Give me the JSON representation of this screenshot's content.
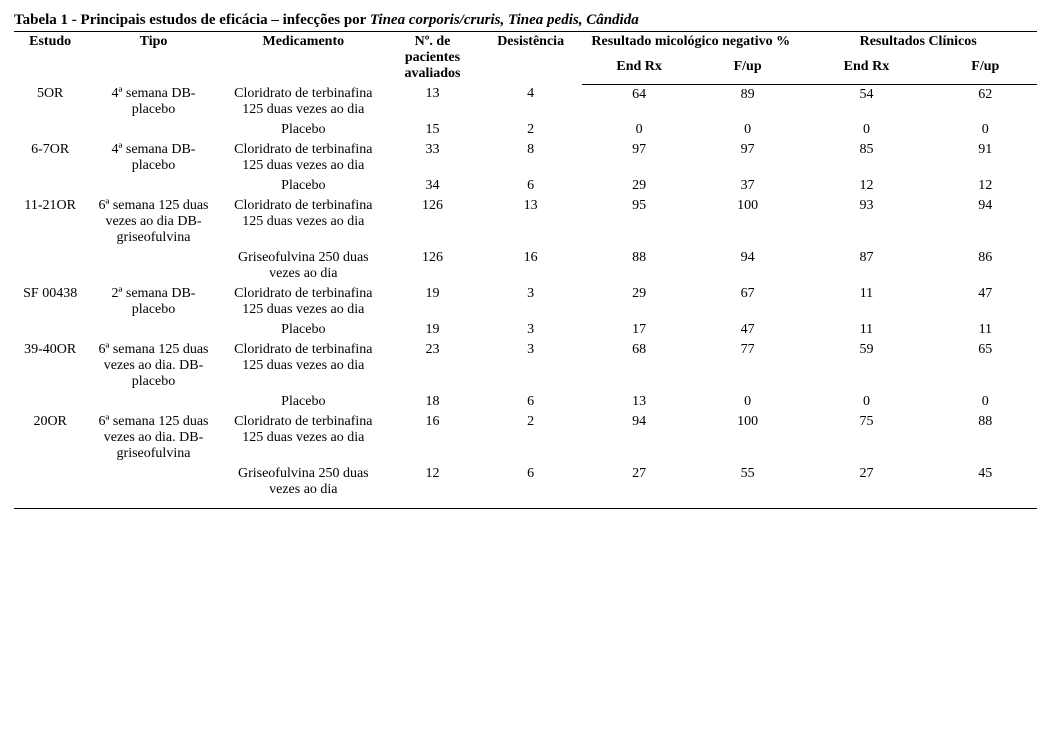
{
  "title_prefix": "Tabela 1 - Principais estudos de eficácia – infecções por ",
  "title_italic": "Tinea corporis/cruris, Tinea pedis, Cândida",
  "headers": {
    "estudo": "Estudo",
    "tipo": "Tipo",
    "medicamento": "Medicamento",
    "n_pacientes": "Nº. de pacientes avaliados",
    "desistencia": "Desistência",
    "resultado_micologico": "Resultado micológico negativo %",
    "resultados_clinicos": "Resultados Clínicos",
    "end_rx": "End Rx",
    "fup": "F/up"
  },
  "rows": [
    {
      "estudo": "5OR",
      "tipo": "4ª semana DB-placebo",
      "med": "Cloridrato de terbinafina 125 duas vezes ao dia",
      "np": "13",
      "des": "4",
      "m_end": "64",
      "m_fup": "89",
      "c_end": "54",
      "c_fup": "62"
    },
    {
      "estudo": "",
      "tipo": "",
      "med": "Placebo",
      "np": "15",
      "des": "2",
      "m_end": "0",
      "m_fup": "0",
      "c_end": "0",
      "c_fup": "0"
    },
    {
      "estudo": "6-7OR",
      "tipo": "4ª semana DB-placebo",
      "med": "Cloridrato de terbinafina 125 duas vezes ao dia",
      "np": "33",
      "des": "8",
      "m_end": "97",
      "m_fup": "97",
      "c_end": "85",
      "c_fup": "91"
    },
    {
      "estudo": "",
      "tipo": "",
      "med": "Placebo",
      "np": "34",
      "des": "6",
      "m_end": "29",
      "m_fup": "37",
      "c_end": "12",
      "c_fup": "12"
    },
    {
      "estudo": "11-21OR",
      "tipo": "6ª semana 125 duas vezes ao dia DB-griseofulvina",
      "med": "Cloridrato de terbinafina 125 duas vezes ao dia",
      "np": "126",
      "des": "13",
      "m_end": "95",
      "m_fup": "100",
      "c_end": "93",
      "c_fup": "94"
    },
    {
      "estudo": "",
      "tipo": "",
      "med": "Griseofulvina 250 duas vezes ao dia",
      "np": "126",
      "des": "16",
      "m_end": "88",
      "m_fup": "94",
      "c_end": "87",
      "c_fup": "86"
    },
    {
      "estudo": "SF 00438",
      "tipo": "2ª semana DB-placebo",
      "med": "Cloridrato de terbinafina 125 duas vezes ao dia",
      "np": "19",
      "des": "3",
      "m_end": "29",
      "m_fup": "67",
      "c_end": "11",
      "c_fup": "47"
    },
    {
      "estudo": "",
      "tipo": "",
      "med": "Placebo",
      "np": "19",
      "des": "3",
      "m_end": "17",
      "m_fup": "47",
      "c_end": "11",
      "c_fup": "11"
    },
    {
      "estudo": "39-40OR",
      "tipo": "6ª semana 125 duas vezes ao dia. DB-placebo",
      "med": "Cloridrato de terbinafina 125 duas vezes ao dia",
      "np": "23",
      "des": "3",
      "m_end": "68",
      "m_fup": "77",
      "c_end": "59",
      "c_fup": "65"
    },
    {
      "estudo": "",
      "tipo": "",
      "med": "Placebo",
      "np": "18",
      "des": "6",
      "m_end": "13",
      "m_fup": "0",
      "c_end": "0",
      "c_fup": "0"
    },
    {
      "estudo": "20OR",
      "tipo": "6ª semana 125 duas vezes ao dia. DB-griseofulvina",
      "med": "Cloridrato de terbinafina 125 duas vezes ao dia",
      "np": "16",
      "des": "2",
      "m_end": "94",
      "m_fup": "100",
      "c_end": "75",
      "c_fup": "88"
    },
    {
      "estudo": "",
      "tipo": "",
      "med": "Griseofulvina 250 duas vezes ao dia",
      "np": "12",
      "des": "6",
      "m_end": "27",
      "m_fup": "55",
      "c_end": "27",
      "c_fup": "45"
    }
  ]
}
